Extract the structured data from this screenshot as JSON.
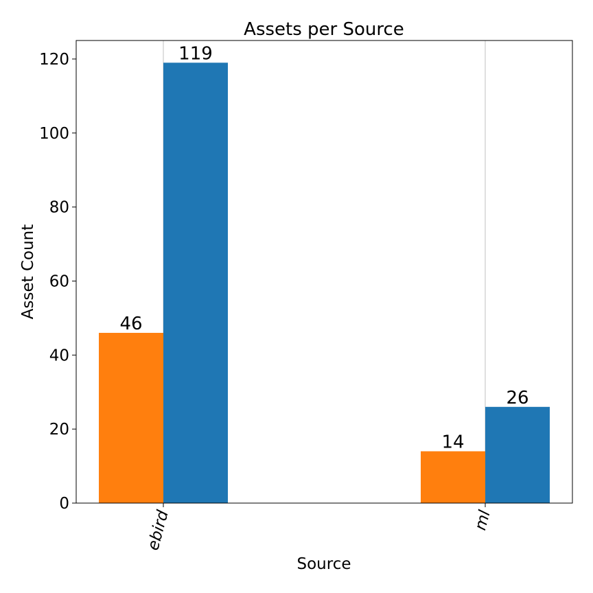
{
  "chart_data": {
    "type": "bar",
    "title": "Assets per Source",
    "xlabel": "Source",
    "ylabel": "Asset Count",
    "categories": [
      "ebird",
      "ml"
    ],
    "series": [
      {
        "color": "#ff7f0e",
        "values": [
          46,
          14
        ]
      },
      {
        "color": "#1f77b4",
        "values": [
          119,
          26
        ]
      }
    ],
    "ylim": [
      0,
      125
    ],
    "yticks": [
      0,
      20,
      40,
      60,
      80,
      100,
      120
    ],
    "grid": "vertical lines at categories",
    "legend": "none"
  }
}
